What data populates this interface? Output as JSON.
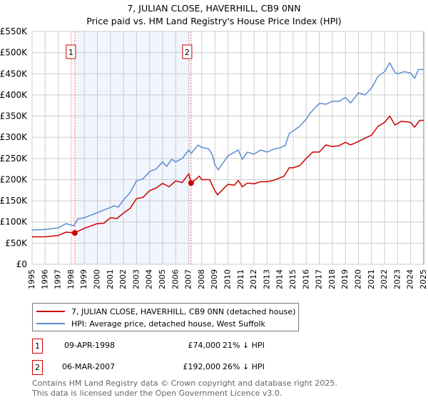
{
  "chart_data": {
    "type": "line",
    "title": "7, JULIAN CLOSE, HAVERHILL, CB9 0NN",
    "subtitle": "Price paid vs. HM Land Registry's House Price Index (HPI)",
    "xlim": [
      1995,
      2025
    ],
    "ylim": [
      0,
      550000
    ],
    "x_ticks": [
      "1995",
      "1996",
      "1997",
      "1998",
      "1999",
      "2000",
      "2001",
      "2002",
      "2003",
      "2004",
      "2005",
      "2006",
      "2007",
      "2008",
      "2009",
      "2010",
      "2011",
      "2012",
      "2013",
      "2014",
      "2015",
      "2016",
      "2017",
      "2018",
      "2019",
      "2020",
      "2021",
      "2022",
      "2023",
      "2024",
      "2025"
    ],
    "y_ticks": [
      {
        "value": 0,
        "label": "£0"
      },
      {
        "value": 50000,
        "label": "£50K"
      },
      {
        "value": 100000,
        "label": "£100K"
      },
      {
        "value": 150000,
        "label": "£150K"
      },
      {
        "value": 200000,
        "label": "£200K"
      },
      {
        "value": 250000,
        "label": "£250K"
      },
      {
        "value": 300000,
        "label": "£300K"
      },
      {
        "value": 350000,
        "label": "£350K"
      },
      {
        "value": 400000,
        "label": "£400K"
      },
      {
        "value": 450000,
        "label": "£450K"
      },
      {
        "value": 500000,
        "label": "£500K"
      },
      {
        "value": 550000,
        "label": "£550K"
      }
    ],
    "grid": true,
    "series": [
      {
        "name": "7, JULIAN CLOSE, HAVERHILL, CB9 0NN (detached house)",
        "color": "#cc0000",
        "x": [
          1995,
          1996,
          1997,
          1997.6,
          1998.27,
          1999,
          2000,
          2000.5,
          2001,
          2001.5,
          2002,
          2002.5,
          2003,
          2003.5,
          2004,
          2004.5,
          2005,
          2005.5,
          2006,
          2006.5,
          2007,
          2007.18,
          2007.5,
          2007.8,
          2008,
          2008.6,
          2009,
          2009.2,
          2010,
          2010.5,
          2010.8,
          2011.1,
          2011.5,
          2012,
          2012.5,
          2013,
          2013.5,
          2014.3,
          2014.7,
          2015,
          2015.5,
          2016,
          2016.5,
          2017,
          2017.5,
          2018,
          2018.5,
          2019,
          2019.4,
          2020,
          2020.5,
          2021,
          2021.5,
          2022,
          2022.4,
          2022.8,
          2023.3,
          2024,
          2024.3,
          2024.7,
          2025
        ],
        "y": [
          65000,
          65000,
          68000,
          76000,
          74000,
          85000,
          96000,
          97000,
          110000,
          108000,
          121000,
          132000,
          155000,
          158000,
          174000,
          180000,
          191000,
          183000,
          197000,
          193000,
          214000,
          192000,
          200000,
          208000,
          200000,
          200000,
          174000,
          164000,
          189000,
          187000,
          198000,
          183000,
          192000,
          190000,
          195000,
          195000,
          198000,
          208000,
          228000,
          228000,
          233000,
          250000,
          265000,
          265000,
          282000,
          278000,
          280000,
          288000,
          282000,
          290000,
          298000,
          305000,
          326000,
          335000,
          350000,
          329000,
          338000,
          335000,
          324000,
          340000,
          340000
        ]
      },
      {
        "name": "HPI: Average price, detached house, West Suffolk",
        "color": "#5b8dd0",
        "x": [
          1995,
          1996,
          1997,
          1997.6,
          1998.2,
          1998.5,
          1999,
          2000,
          2001.3,
          2001.6,
          2002,
          2002.5,
          2003,
          2003.5,
          2004,
          2004.5,
          2005,
          2005.3,
          2005.7,
          2006,
          2006.5,
          2007,
          2007.2,
          2007.7,
          2008,
          2008.5,
          2008.8,
          2009,
          2009.25,
          2010,
          2010.8,
          2011.1,
          2011.5,
          2012,
          2012.5,
          2013,
          2013.5,
          2014,
          2014.4,
          2014.7,
          2015,
          2015.5,
          2016,
          2016.3,
          2017,
          2017.5,
          2018,
          2018.5,
          2019,
          2019.4,
          2020,
          2020.5,
          2021,
          2021.5,
          2022,
          2022.4,
          2022.8,
          2023,
          2023.5,
          2024,
          2024.3,
          2024.6,
          2025
        ],
        "y": [
          81000,
          82000,
          86000,
          96000,
          91000,
          107000,
          110000,
          122000,
          138000,
          135000,
          152000,
          169000,
          197000,
          202000,
          219000,
          225000,
          242000,
          231000,
          248000,
          242000,
          250000,
          270000,
          262000,
          282000,
          276000,
          273000,
          259000,
          236000,
          223000,
          256000,
          270000,
          248000,
          265000,
          260000,
          270000,
          265000,
          272000,
          275000,
          281000,
          309000,
          315000,
          326000,
          343000,
          357000,
          380000,
          378000,
          385000,
          385000,
          394000,
          381000,
          405000,
          400000,
          416000,
          444000,
          455000,
          476000,
          453000,
          450000,
          455000,
          452000,
          439000,
          460000,
          460000
        ]
      }
    ],
    "sales": [
      {
        "label": "1",
        "x": 1998.27,
        "price": 74000
      },
      {
        "label": "2",
        "x": 2007.18,
        "price": 192000
      }
    ],
    "shaded_range": [
      1998.27,
      2007.18
    ]
  },
  "legend": {
    "property": "7, JULIAN CLOSE, HAVERHILL, CB9 0NN (detached house)",
    "hpi": "HPI: Average price, detached house, West Suffolk"
  },
  "transactions": [
    {
      "num": "1",
      "date": "09-APR-1998",
      "price": "£74,000",
      "hpi": "21% ↓ HPI"
    },
    {
      "num": "2",
      "date": "06-MAR-2007",
      "price": "£192,000",
      "hpi": "26% ↓ HPI"
    }
  ],
  "footer": {
    "line1": "Contains HM Land Registry data © Crown copyright and database right 2025.",
    "line2": "This data is licensed under the Open Government Licence v3.0."
  }
}
